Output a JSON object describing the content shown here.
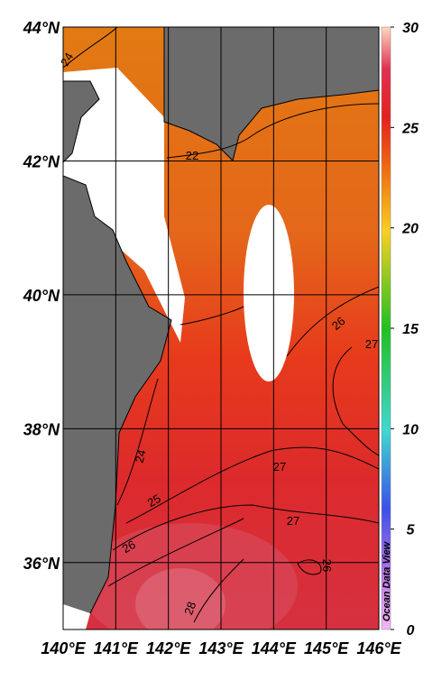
{
  "map": {
    "lon_range": [
      140,
      146
    ],
    "lat_range": [
      35,
      44
    ],
    "lon_ticks": [
      {
        "value": 140,
        "label": "140°E"
      },
      {
        "value": 141,
        "label": "141°E"
      },
      {
        "value": 142,
        "label": "142°E"
      },
      {
        "value": 143,
        "label": "143°E"
      },
      {
        "value": 144,
        "label": "144°E"
      },
      {
        "value": 145,
        "label": "145°E"
      },
      {
        "value": 146,
        "label": "146°E"
      }
    ],
    "lat_ticks": [
      {
        "value": 44,
        "label": "44°N"
      },
      {
        "value": 42,
        "label": "42°N"
      },
      {
        "value": 40,
        "label": "40°N"
      },
      {
        "value": 38,
        "label": "38°N"
      },
      {
        "value": 36,
        "label": "36°N"
      }
    ],
    "contour_labels": [
      24,
      22,
      26,
      27,
      24,
      27,
      25,
      27,
      26,
      26,
      28
    ],
    "watermark": "Ocean Data View"
  },
  "colorbar": {
    "range": [
      0,
      30
    ],
    "ticks": [
      0,
      5,
      10,
      15,
      20,
      25,
      30
    ]
  }
}
